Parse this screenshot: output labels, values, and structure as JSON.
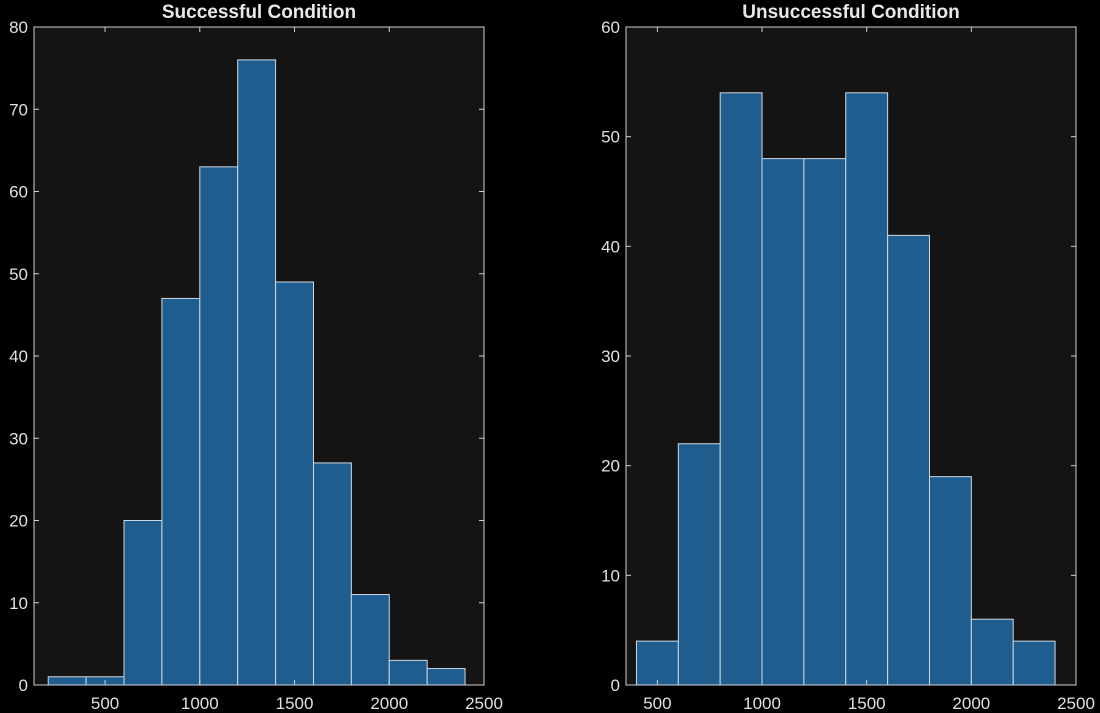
{
  "chart_data": [
    {
      "type": "bar",
      "title": "Successful Condition",
      "bin_edges": [
        200,
        400,
        600,
        800,
        1000,
        1200,
        1400,
        1600,
        1800,
        2000,
        2200,
        2400
      ],
      "values": [
        1,
        1,
        20,
        47,
        63,
        76,
        49,
        27,
        11,
        3,
        2
      ],
      "xlim": [
        125,
        2500
      ],
      "ylim": [
        0,
        80
      ],
      "xticks": [
        500,
        1000,
        1500,
        2000,
        2500
      ],
      "yticks": [
        0,
        10,
        20,
        30,
        40,
        50,
        60,
        70,
        80
      ],
      "grid": false
    },
    {
      "type": "bar",
      "title": "Unsuccessful Condition",
      "bin_edges": [
        400,
        600,
        800,
        1000,
        1200,
        1400,
        1600,
        1800,
        2000,
        2200,
        2400
      ],
      "values": [
        4,
        22,
        54,
        48,
        48,
        54,
        41,
        19,
        6,
        4
      ],
      "xlim": [
        350,
        2500
      ],
      "ylim": [
        0,
        60
      ],
      "xticks": [
        500,
        1000,
        1500,
        2000,
        2500
      ],
      "yticks": [
        0,
        10,
        20,
        30,
        40,
        50,
        60
      ],
      "grid": false
    }
  ],
  "colors": {
    "background": "#000000",
    "axes": "#141414",
    "bar": "#205d8f",
    "text": "#e0e0e0"
  }
}
